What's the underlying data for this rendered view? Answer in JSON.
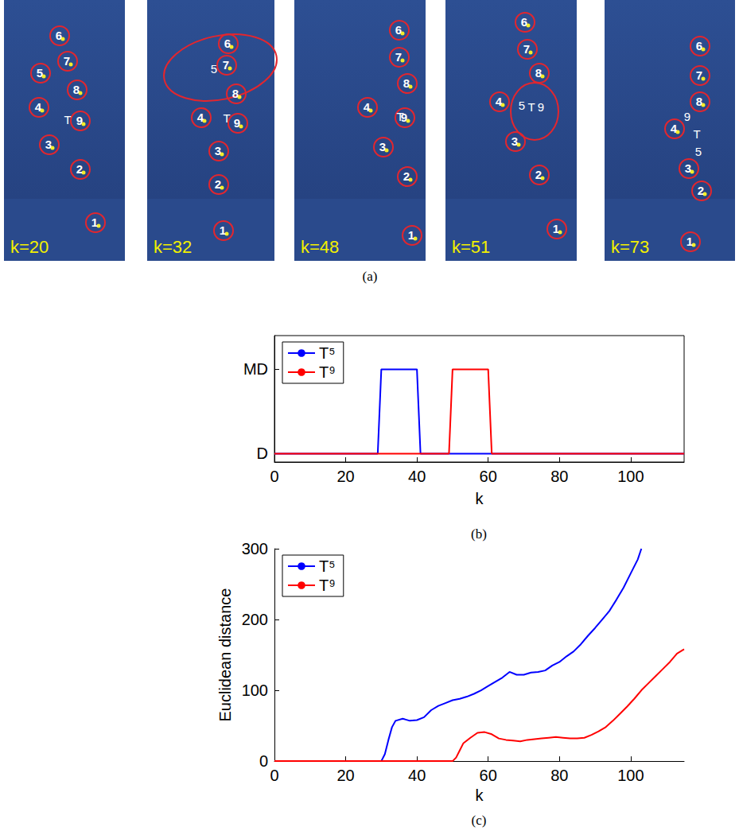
{
  "image_panel": {
    "caption": "(a)",
    "frames": [
      {
        "label": "k=20",
        "circled": [
          "6",
          "7",
          "5",
          "8",
          "4",
          "9",
          "3",
          "2",
          "1"
        ],
        "plain": [
          "T"
        ]
      },
      {
        "label": "k=32",
        "circled": [
          "6",
          "7",
          "8",
          "4",
          "9",
          "3",
          "2",
          "1"
        ],
        "plain": [
          "5",
          "T"
        ]
      },
      {
        "label": "k=48",
        "circled": [
          "6",
          "7",
          "8",
          "4",
          "9",
          "3",
          "2",
          "1"
        ],
        "plain": [
          "T"
        ]
      },
      {
        "label": "k=51",
        "circled": [
          "6",
          "7",
          "8",
          "4",
          "3",
          "2",
          "1"
        ],
        "plain": [
          "5",
          "T",
          "9"
        ]
      },
      {
        "label": "k=73",
        "circled": [
          "6",
          "7",
          "8",
          "4",
          "3",
          "2",
          "1"
        ],
        "plain": [
          "9",
          "T",
          "5"
        ]
      }
    ]
  },
  "chart_data": [
    {
      "type": "line",
      "caption": "(b)",
      "x_label": "k",
      "xlim": [
        0,
        115
      ],
      "xticks": [
        0,
        20,
        40,
        60,
        80,
        100
      ],
      "ylim": [
        -0.1,
        1.4
      ],
      "yticks": [
        {
          "value": 0,
          "label": "D"
        },
        {
          "value": 1,
          "label": "MD"
        }
      ],
      "legend": "upper left",
      "grid": false,
      "series": [
        {
          "name": "T⁵",
          "color": "#0000ff",
          "x": [
            0,
            29,
            30,
            40,
            41,
            115
          ],
          "values": [
            0,
            0,
            1,
            1,
            0,
            0
          ]
        },
        {
          "name": "T⁹",
          "color": "#ff0000",
          "x": [
            0,
            49,
            50,
            60,
            61,
            115
          ],
          "values": [
            0,
            0,
            1,
            1,
            0,
            0
          ]
        }
      ]
    },
    {
      "type": "line",
      "caption": "(c)",
      "x_label": "k",
      "y_label": "Euclidean distance",
      "xlim": [
        0,
        115
      ],
      "xticks": [
        0,
        20,
        40,
        60,
        80,
        100
      ],
      "ylim": [
        0,
        300
      ],
      "yticks": [
        0,
        100,
        200,
        300
      ],
      "legend": "upper left",
      "grid": false,
      "series": [
        {
          "name": "T⁵",
          "color": "#0000ff",
          "x": [
            0,
            30,
            31,
            32,
            33,
            34,
            36,
            38,
            40,
            42,
            44,
            46,
            48,
            50,
            52,
            54,
            56,
            58,
            60,
            62,
            64,
            66,
            68,
            70,
            72,
            74,
            76,
            78,
            80,
            82,
            84,
            86,
            88,
            90,
            92,
            94,
            96,
            98,
            100,
            102,
            103
          ],
          "values": [
            0,
            0,
            10,
            30,
            48,
            57,
            60,
            57,
            58,
            62,
            72,
            78,
            82,
            86,
            88,
            91,
            95,
            100,
            106,
            112,
            118,
            126,
            122,
            122,
            125,
            126,
            128,
            135,
            140,
            148,
            155,
            165,
            177,
            188,
            200,
            212,
            228,
            245,
            265,
            285,
            300
          ]
        },
        {
          "name": "T⁹",
          "color": "#ff0000",
          "x": [
            0,
            50,
            51,
            52,
            53,
            55,
            57,
            59,
            61,
            63,
            65,
            67,
            69,
            71,
            73,
            75,
            77,
            79,
            81,
            83,
            85,
            87,
            89,
            91,
            93,
            95,
            97,
            99,
            101,
            103,
            105,
            107,
            109,
            111,
            113,
            115
          ],
          "values": [
            0,
            0,
            5,
            15,
            25,
            33,
            40,
            41,
            38,
            32,
            30,
            29,
            28,
            30,
            31,
            32,
            33,
            34,
            33,
            32,
            32,
            33,
            37,
            42,
            48,
            57,
            67,
            77,
            88,
            100,
            110,
            120,
            130,
            140,
            152,
            158
          ]
        }
      ]
    }
  ]
}
